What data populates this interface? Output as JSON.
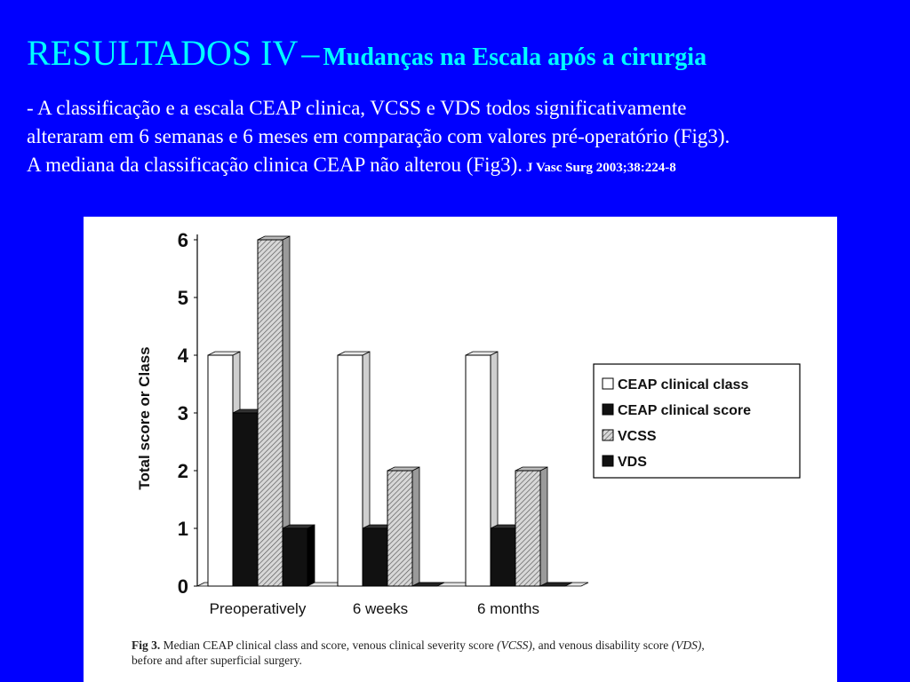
{
  "slide": {
    "title_main": "RESULTADOS IV",
    "title_dash": "–",
    "title_sub": "Mudanças na Escala após a cirurgia",
    "body_line1": "- A classificação e a escala CEAP clinica, VCSS e VDS todos significativamente",
    "body_line2": "alteraram em 6 semanas e 6 meses em comparação com valores pré-operatório (Fig3).",
    "body_line3": "A mediana da classificação clinica CEAP não alterou (Fig3).",
    "citation": "J Vasc Surg 2003;38:224-8",
    "colors": {
      "background": "#0000ff",
      "title": "#00ffff",
      "text": "#ffffff"
    }
  },
  "figure": {
    "caption_prefix": "Fig 3.",
    "caption_text1": "Median CEAP clinical class and score, venous clinical severity score",
    "caption_vcss": "(VCSS)",
    "caption_text2": ", and venous disability score",
    "caption_vds": "(VDS)",
    "caption_text3": ",",
    "caption_line2": "before and after superficial surgery."
  },
  "chart_data": {
    "type": "bar",
    "categories": [
      "Preoperatively",
      "6 weeks",
      "6 months"
    ],
    "series": [
      {
        "name": "CEAP clinical class",
        "values": [
          4,
          4,
          4
        ],
        "fill": "white"
      },
      {
        "name": "CEAP clinical score",
        "values": [
          3,
          1,
          1
        ],
        "fill": "black"
      },
      {
        "name": "VCSS",
        "values": [
          6,
          2,
          2
        ],
        "fill": "hatched"
      },
      {
        "name": "VDS",
        "values": [
          1,
          0,
          0
        ],
        "fill": "black"
      }
    ],
    "ylabel": "Total score or Class",
    "ylim": [
      0,
      6
    ],
    "yticks": [
      "0",
      "1",
      "2",
      "3",
      "4",
      "5",
      "6"
    ],
    "legend": "right",
    "style": "3d-bars"
  }
}
